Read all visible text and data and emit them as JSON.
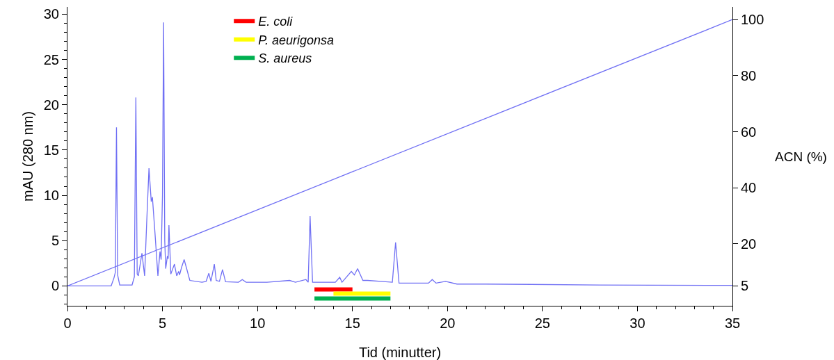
{
  "chart_data": {
    "type": "line",
    "xlabel": "Tid (minutter)",
    "ylabel": "mAU (280 nm)",
    "y2label": "ACN (%)",
    "xlim": [
      0,
      35
    ],
    "xticks": [
      0,
      5,
      10,
      15,
      20,
      25,
      30,
      35
    ],
    "ylim": [
      -2.2,
      30.8
    ],
    "yticks": [
      0,
      5,
      10,
      15,
      20,
      25,
      30
    ],
    "y2lim": [
      -2.1,
      104.5
    ],
    "y2ticks": [
      5,
      20,
      40,
      60,
      80,
      100
    ],
    "legend": "top",
    "series": [
      {
        "color": "#7070f4",
        "x": [
          0,
          2.3,
          2.45,
          2.52,
          2.58,
          2.64,
          2.75,
          3.4,
          3.52,
          3.6,
          3.67,
          3.73,
          3.92,
          4.06,
          4.17,
          4.29,
          4.41,
          4.47,
          4.6,
          4.76,
          4.87,
          4.93,
          5.0,
          5.06,
          5.12,
          5.17,
          5.26,
          5.3,
          5.34,
          5.44,
          5.63,
          5.75,
          5.85,
          5.9,
          6.0,
          6.14,
          6.26,
          6.44,
          7.08,
          7.3,
          7.44,
          7.55,
          7.73,
          7.83,
          8.0,
          8.16,
          8.32,
          9.0,
          9.2,
          9.4,
          10.5,
          11.69,
          12.0,
          12.55,
          12.67,
          12.77,
          12.9,
          14.1,
          14.33,
          14.45,
          14.94,
          15.1,
          15.27,
          15.55,
          15.8,
          16.5,
          17.1,
          17.27,
          17.45,
          19.0,
          19.2,
          19.4,
          19.9,
          20.5,
          22.0,
          28.0,
          35.0
        ],
        "values": [
          0,
          0,
          0.9,
          1.5,
          17.5,
          1.2,
          0.1,
          0.1,
          1.0,
          20.8,
          1.3,
          1.1,
          3.6,
          1.1,
          7.0,
          13.0,
          9.3,
          9.8,
          6.0,
          1.1,
          3.8,
          2.9,
          10.0,
          29.1,
          5.0,
          1.9,
          3.3,
          3.0,
          6.7,
          1.3,
          2.4,
          1.1,
          1.6,
          1.2,
          2.0,
          2.9,
          2.0,
          0.6,
          0.4,
          0.5,
          1.4,
          0.5,
          2.4,
          0.6,
          0.5,
          1.8,
          0.45,
          0.4,
          0.7,
          0.4,
          0.4,
          0.6,
          0.4,
          0.7,
          0.4,
          7.7,
          0.4,
          0.4,
          0.95,
          0.4,
          1.6,
          1.2,
          1.9,
          0.6,
          0.6,
          0.5,
          0.4,
          4.8,
          0.3,
          0.3,
          0.7,
          0.3,
          0.5,
          0.2,
          0.2,
          0.1,
          0.05
        ]
      },
      {
        "color": "#7070f4",
        "axis": "y2",
        "x": [
          0,
          35
        ],
        "values": [
          5,
          100
        ]
      },
      {
        "name": "E. coli",
        "color": "#ff0000",
        "x": [
          13,
          15
        ],
        "values": [
          -0.4,
          -0.4
        ]
      },
      {
        "name": "P. aeurigonsa",
        "color": "#ffff00",
        "x": [
          14,
          17
        ],
        "values": [
          -0.85,
          -0.85
        ]
      },
      {
        "name": "S. aureus",
        "color": "#00b050",
        "x": [
          13,
          17
        ],
        "values": [
          -1.4,
          -1.4
        ]
      }
    ]
  }
}
